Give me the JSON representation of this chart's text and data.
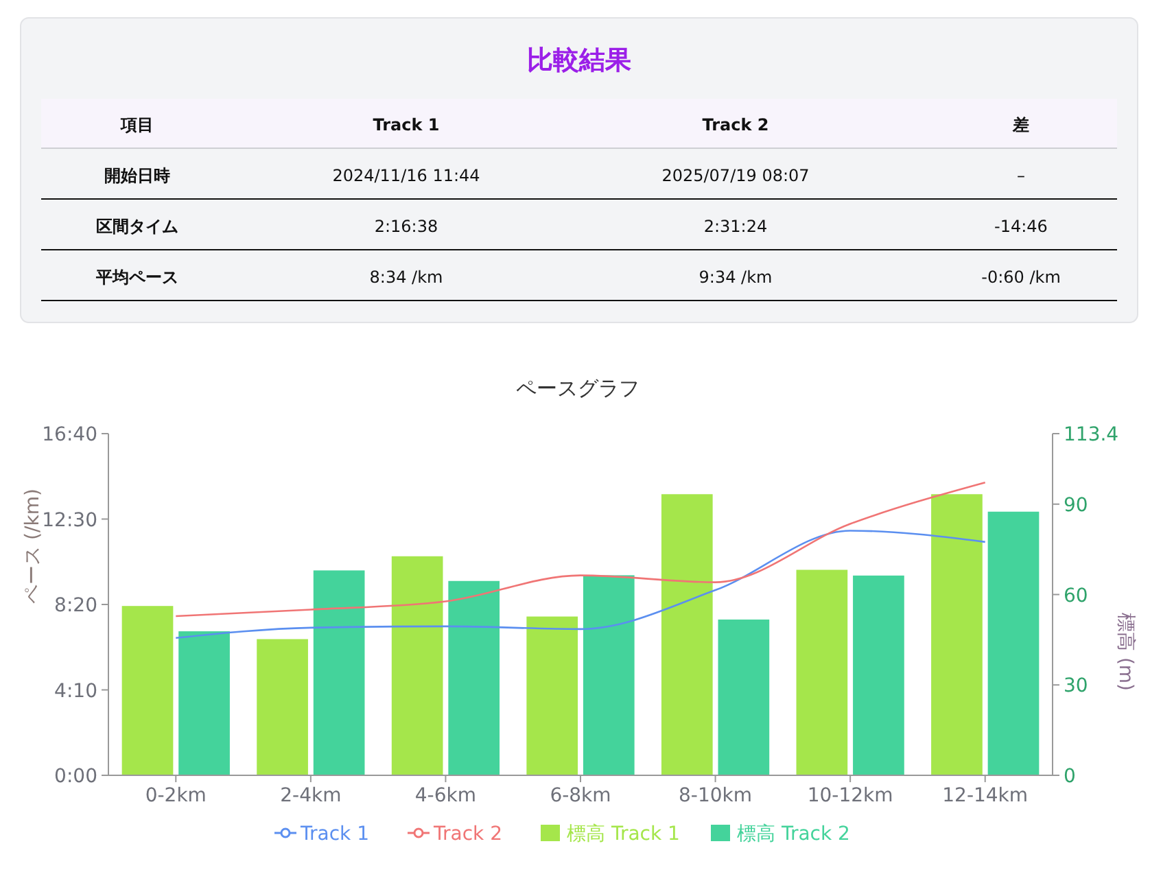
{
  "chart_data": [
    {
      "type": "other",
      "title": "比較結果",
      "categories": [
        "項目",
        "Track 1",
        "Track 2",
        "差"
      ],
      "annotations": [
        "開始日時",
        "2024/11/16 11:44",
        "2025/07/19 08:07",
        "–",
        "区間タイム",
        "2:16:38",
        "2:31:24",
        "-14:46",
        "平均ペース",
        "8:34 /km",
        "9:34 /km",
        "-0:60 /km"
      ]
    },
    {
      "type": "bar",
      "title": "ペースグラフ",
      "ylabel": "ペース (/km)",
      "y2label": "標高 (m)",
      "categories": [
        "0-2km",
        "2-4km",
        "4-6km",
        "6-8km",
        "8-10km",
        "10-12km",
        "12-14km"
      ],
      "series": [
        {
          "name": "Track 1",
          "type": "line",
          "color": "#5b8ff0",
          "values": [
            402,
            432,
            436,
            428,
            542,
            716,
            683
          ]
        },
        {
          "name": "Track 2",
          "type": "line",
          "color": "#f07575",
          "values": [
            466,
            485,
            509,
            585,
            565,
            736,
            857
          ]
        },
        {
          "name": "標高 Track 1",
          "type": "bar",
          "axis": "y2",
          "color": "#a5e64b",
          "values": [
            56.2,
            45.2,
            72.7,
            52.7,
            93.3,
            68.2,
            93.3
          ]
        },
        {
          "name": "標高 Track 2",
          "type": "bar",
          "axis": "y2",
          "color": "#44d39b",
          "values": [
            47.8,
            68.0,
            64.5,
            66.4,
            51.7,
            66.3,
            87.5
          ]
        }
      ],
      "ylim": [
        0,
        1000
      ],
      "yticks": [
        {
          "value": 0,
          "label": "0:00"
        },
        {
          "value": 250,
          "label": "4:10"
        },
        {
          "value": 500,
          "label": "8:20"
        },
        {
          "value": 750,
          "label": "12:30"
        },
        {
          "value": 1000,
          "label": "16:40"
        }
      ],
      "y2lim": [
        0,
        113.4
      ],
      "y2ticks": [
        0,
        30,
        60,
        90,
        113.4
      ],
      "legend": "bottom"
    }
  ]
}
